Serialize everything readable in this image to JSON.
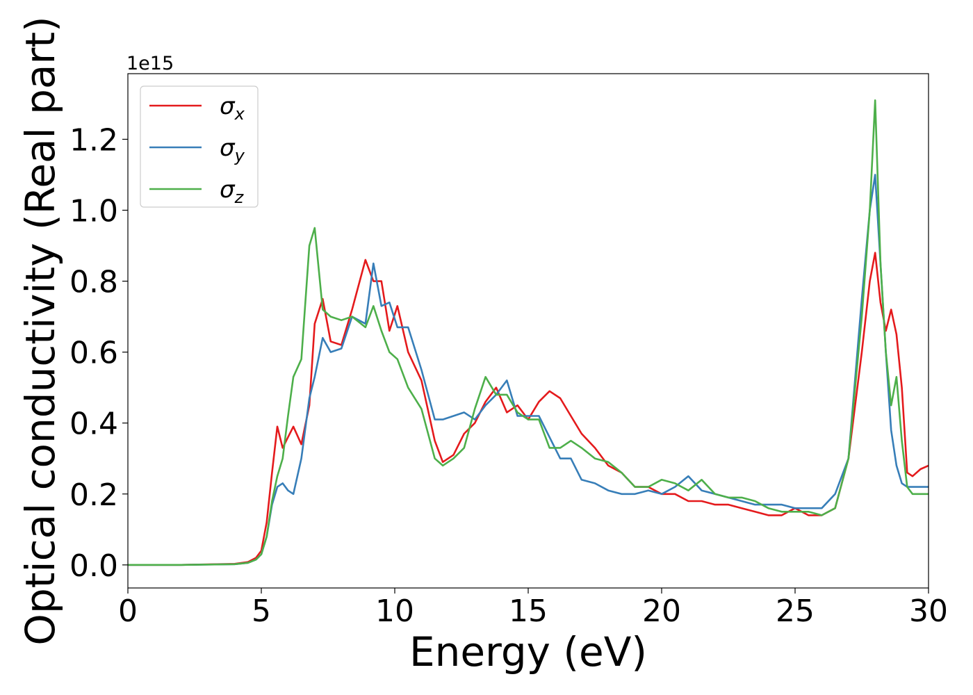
{
  "chart_data": {
    "type": "line",
    "title": "",
    "xlabel": "Energy (eV)",
    "ylabel": "Optical conductivity (Real part)",
    "y_offset_label": "1e15",
    "xlim": [
      0,
      30
    ],
    "ylim": [
      -0.065,
      1.385
    ],
    "x_ticks": [
      0,
      5,
      10,
      15,
      20,
      25,
      30
    ],
    "x_tick_labels": [
      "0",
      "5",
      "10",
      "15",
      "20",
      "25",
      "30"
    ],
    "y_ticks": [
      0.0,
      0.2,
      0.4,
      0.6,
      0.8,
      1.0,
      1.2
    ],
    "y_tick_labels": [
      "0.0",
      "0.2",
      "0.4",
      "0.6",
      "0.8",
      "1.0",
      "1.2"
    ],
    "grid": false,
    "legend_position": "top-left",
    "series": [
      {
        "name": "σx",
        "base": "σ",
        "sub": "x",
        "color": "#e41a1c",
        "x": [
          0,
          2,
          4,
          4.5,
          4.8,
          5.0,
          5.2,
          5.4,
          5.6,
          5.8,
          6.0,
          6.2,
          6.5,
          6.8,
          7.0,
          7.3,
          7.6,
          8.0,
          8.4,
          8.9,
          9.2,
          9.5,
          9.8,
          10.1,
          10.5,
          11.0,
          11.5,
          11.8,
          12.2,
          12.6,
          13.0,
          13.4,
          13.8,
          14.2,
          14.6,
          15.0,
          15.4,
          15.8,
          16.2,
          16.6,
          17.0,
          17.5,
          18.0,
          18.5,
          19.0,
          19.5,
          20.0,
          20.5,
          21.0,
          21.5,
          22.0,
          22.5,
          23.0,
          23.5,
          24.0,
          24.5,
          25.0,
          25.5,
          26.0,
          26.5,
          27.0,
          27.5,
          27.8,
          28.0,
          28.2,
          28.4,
          28.6,
          28.8,
          29.0,
          29.2,
          29.4,
          29.7,
          30.0
        ],
        "y": [
          0.0,
          0.0,
          0.003,
          0.008,
          0.02,
          0.04,
          0.12,
          0.26,
          0.39,
          0.33,
          0.36,
          0.39,
          0.34,
          0.45,
          0.68,
          0.75,
          0.63,
          0.62,
          0.72,
          0.86,
          0.8,
          0.8,
          0.66,
          0.73,
          0.6,
          0.52,
          0.35,
          0.29,
          0.31,
          0.37,
          0.4,
          0.46,
          0.5,
          0.43,
          0.45,
          0.41,
          0.46,
          0.49,
          0.47,
          0.42,
          0.37,
          0.33,
          0.28,
          0.26,
          0.22,
          0.22,
          0.2,
          0.2,
          0.18,
          0.18,
          0.17,
          0.17,
          0.16,
          0.15,
          0.14,
          0.14,
          0.16,
          0.14,
          0.14,
          0.16,
          0.3,
          0.6,
          0.8,
          0.88,
          0.74,
          0.66,
          0.72,
          0.65,
          0.5,
          0.26,
          0.25,
          0.27,
          0.28
        ]
      },
      {
        "name": "σy",
        "base": "σ",
        "sub": "y",
        "color": "#377eb8",
        "x": [
          0,
          2,
          4,
          4.5,
          4.8,
          5.0,
          5.2,
          5.4,
          5.6,
          5.8,
          6.0,
          6.2,
          6.5,
          6.8,
          7.0,
          7.3,
          7.6,
          8.0,
          8.4,
          8.9,
          9.2,
          9.5,
          9.8,
          10.1,
          10.5,
          11.0,
          11.5,
          11.8,
          12.2,
          12.6,
          13.0,
          13.4,
          13.8,
          14.2,
          14.6,
          15.0,
          15.4,
          15.8,
          16.2,
          16.6,
          17.0,
          17.5,
          18.0,
          18.5,
          19.0,
          19.5,
          20.0,
          20.5,
          21.0,
          21.5,
          22.0,
          22.5,
          23.0,
          23.5,
          24.0,
          24.5,
          25.0,
          25.5,
          26.0,
          26.5,
          27.0,
          27.5,
          27.8,
          28.0,
          28.2,
          28.4,
          28.6,
          28.8,
          29.0,
          29.2,
          29.4,
          29.7,
          30.0
        ],
        "y": [
          0.0,
          0.0,
          0.002,
          0.006,
          0.015,
          0.03,
          0.08,
          0.17,
          0.22,
          0.23,
          0.21,
          0.2,
          0.3,
          0.47,
          0.53,
          0.64,
          0.6,
          0.61,
          0.7,
          0.68,
          0.85,
          0.73,
          0.74,
          0.67,
          0.67,
          0.55,
          0.41,
          0.41,
          0.42,
          0.43,
          0.41,
          0.45,
          0.48,
          0.52,
          0.42,
          0.42,
          0.42,
          0.36,
          0.3,
          0.3,
          0.24,
          0.23,
          0.21,
          0.2,
          0.2,
          0.21,
          0.2,
          0.22,
          0.25,
          0.21,
          0.2,
          0.19,
          0.18,
          0.17,
          0.17,
          0.17,
          0.16,
          0.16,
          0.16,
          0.2,
          0.3,
          0.75,
          1.0,
          1.1,
          0.85,
          0.6,
          0.38,
          0.28,
          0.23,
          0.22,
          0.22,
          0.22,
          0.22
        ]
      },
      {
        "name": "σz",
        "base": "σ",
        "sub": "z",
        "color": "#4daf4a",
        "x": [
          0,
          2,
          4,
          4.5,
          4.8,
          5.0,
          5.2,
          5.4,
          5.6,
          5.8,
          6.0,
          6.2,
          6.5,
          6.8,
          7.0,
          7.3,
          7.6,
          8.0,
          8.4,
          8.9,
          9.2,
          9.5,
          9.8,
          10.1,
          10.5,
          11.0,
          11.5,
          11.8,
          12.2,
          12.6,
          13.0,
          13.4,
          13.8,
          14.2,
          14.6,
          15.0,
          15.4,
          15.8,
          16.2,
          16.6,
          17.0,
          17.5,
          18.0,
          18.5,
          19.0,
          19.5,
          20.0,
          20.5,
          21.0,
          21.5,
          22.0,
          22.5,
          23.0,
          23.5,
          24.0,
          24.5,
          25.0,
          25.5,
          26.0,
          26.5,
          27.0,
          27.5,
          27.8,
          28.0,
          28.2,
          28.4,
          28.6,
          28.8,
          29.0,
          29.2,
          29.4,
          29.7,
          30.0
        ],
        "y": [
          0.0,
          0.0,
          0.002,
          0.006,
          0.015,
          0.03,
          0.08,
          0.18,
          0.25,
          0.3,
          0.42,
          0.53,
          0.58,
          0.9,
          0.95,
          0.72,
          0.7,
          0.69,
          0.7,
          0.67,
          0.73,
          0.66,
          0.6,
          0.58,
          0.5,
          0.44,
          0.3,
          0.28,
          0.3,
          0.33,
          0.44,
          0.53,
          0.48,
          0.48,
          0.43,
          0.41,
          0.41,
          0.33,
          0.33,
          0.35,
          0.33,
          0.3,
          0.29,
          0.26,
          0.22,
          0.22,
          0.24,
          0.23,
          0.21,
          0.24,
          0.2,
          0.19,
          0.19,
          0.18,
          0.16,
          0.15,
          0.15,
          0.15,
          0.14,
          0.16,
          0.3,
          0.7,
          1.0,
          1.31,
          0.85,
          0.6,
          0.45,
          0.53,
          0.35,
          0.22,
          0.2,
          0.2,
          0.2
        ]
      }
    ]
  }
}
